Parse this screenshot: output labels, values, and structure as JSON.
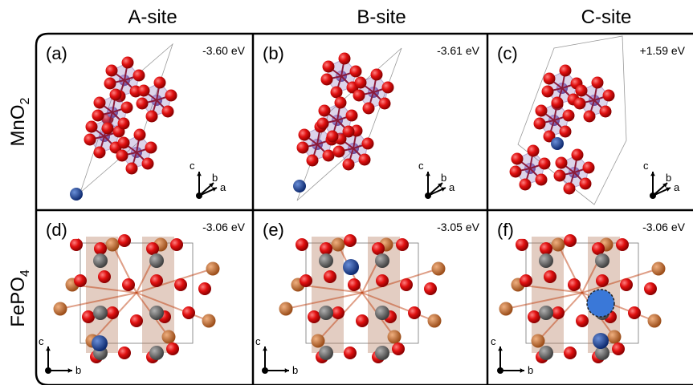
{
  "column_headers": [
    "A-site",
    "B-site",
    "C-site"
  ],
  "row_labels": [
    {
      "base": "MnO",
      "sub": "2"
    },
    {
      "base": "FePO",
      "sub": "4"
    }
  ],
  "panels": [
    {
      "label": "(a)",
      "energy": "-3.60 eV"
    },
    {
      "label": "(b)",
      "energy": "-3.61 eV"
    },
    {
      "label": "(c)",
      "energy": "+1.59 eV"
    },
    {
      "label": "(d)",
      "energy": "-3.06 eV"
    },
    {
      "label": "(e)",
      "energy": "-3.05 eV"
    },
    {
      "label": "(f)",
      "energy": "-3.06 eV"
    }
  ],
  "axes_labels": {
    "top": [
      "c",
      "b",
      "a"
    ],
    "bottom": [
      "c",
      "b"
    ]
  }
}
